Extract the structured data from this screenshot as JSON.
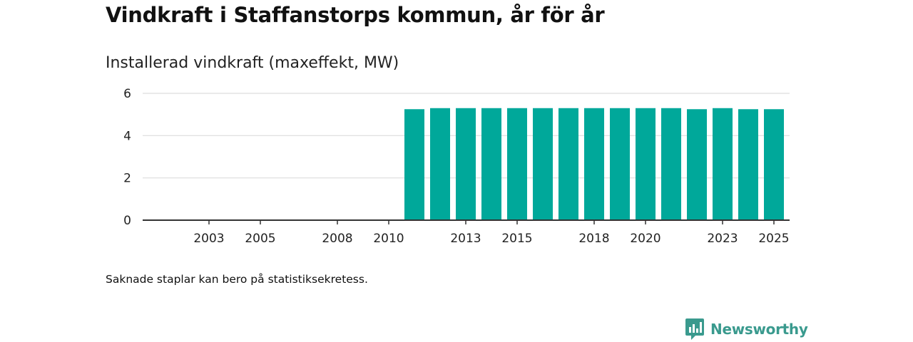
{
  "title": "Vindkraft i Staffanstorps kommun, år för år",
  "subtitle": "Installerad vindkraft (maxeffekt, MW)",
  "footnote": "Saknade staplar kan bero på statistiksekretess.",
  "brand": {
    "name": "Newsworthy",
    "icon": "newsworthy-logo-icon",
    "color": "#3a9a8e"
  },
  "colors": {
    "bar": "#00a89a",
    "grid": "#dddddd",
    "axis": "#333333",
    "text": "#222222"
  },
  "chart_data": {
    "type": "bar",
    "title": "Vindkraft i Staffanstorps kommun, år för år",
    "ylabel": "Installerad vindkraft (maxeffekt, MW)",
    "xlabel": "",
    "categories": [
      "2002",
      "2003",
      "2004",
      "2005",
      "2006",
      "2007",
      "2008",
      "2009",
      "2010",
      "2011",
      "2012",
      "2013",
      "2014",
      "2015",
      "2016",
      "2017",
      "2018",
      "2019",
      "2020",
      "2021",
      "2022",
      "2023",
      "2024",
      "2025"
    ],
    "values": [
      0,
      0,
      0,
      0,
      0,
      0,
      0,
      0,
      0,
      5.25,
      5.3,
      5.3,
      5.3,
      5.3,
      5.3,
      5.3,
      5.3,
      5.3,
      5.3,
      5.3,
      5.25,
      5.3,
      5.25,
      5.25
    ],
    "x_tick_labels": [
      "2003",
      "2005",
      "2008",
      "2010",
      "2013",
      "2015",
      "2018",
      "2020",
      "2023",
      "2025"
    ],
    "y_ticks": [
      0,
      2,
      4,
      6
    ],
    "y_tick_labels": [
      "0",
      "2",
      "4",
      "6"
    ],
    "ylim": [
      0,
      6
    ],
    "grid": true,
    "legend": "none"
  }
}
